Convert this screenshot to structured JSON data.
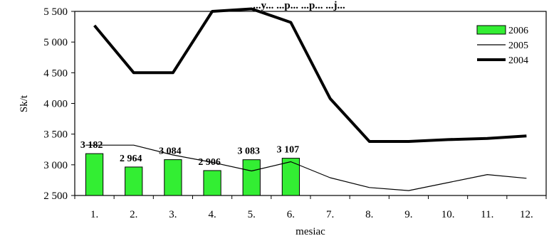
{
  "chart_data": {
    "type": "bar",
    "title": "...y... ...p... ...p... ...j...",
    "xlabel": "mesiac",
    "ylabel": "Sk/t",
    "categories": [
      "1.",
      "2.",
      "3.",
      "4.",
      "5.",
      "6.",
      "7.",
      "8.",
      "9.",
      "10.",
      "11.",
      "12."
    ],
    "ylim": [
      2500,
      5500
    ],
    "y_ticks": [
      "2 500",
      "3 000",
      "3 500",
      "4 000",
      "4 500",
      "5 000",
      "5 500"
    ],
    "y_tick_values": [
      2500,
      3000,
      3500,
      4000,
      4500,
      5000,
      5500
    ],
    "grid": false,
    "legend_position": "top-right",
    "series": [
      {
        "name": "2006",
        "type": "bar",
        "color": "#33ee33",
        "values": [
          3182,
          2964,
          3084,
          2906,
          3083,
          3107,
          null,
          null,
          null,
          null,
          null,
          null
        ],
        "labels": [
          "3 182",
          "2 964",
          "3 084",
          "2 906",
          "3 083",
          "3 107",
          "",
          "",
          "",
          "",
          "",
          ""
        ]
      },
      {
        "name": "2005",
        "type": "line",
        "color": "#000000",
        "weight": "thin",
        "values": [
          3320,
          3320,
          3160,
          3040,
          2900,
          3050,
          2790,
          2630,
          2580,
          2710,
          2840,
          2780
        ]
      },
      {
        "name": "2004",
        "type": "line",
        "color": "#000000",
        "weight": "thick",
        "values": [
          5270,
          4500,
          4500,
          5500,
          5540,
          5320,
          4080,
          3380,
          3380,
          3410,
          3430,
          3470
        ]
      }
    ]
  }
}
